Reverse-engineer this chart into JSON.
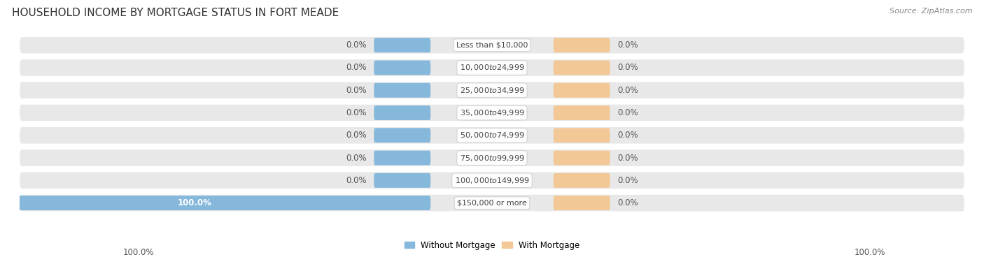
{
  "title": "HOUSEHOLD INCOME BY MORTGAGE STATUS IN FORT MEADE",
  "source": "Source: ZipAtlas.com",
  "categories": [
    "Less than $10,000",
    "$10,000 to $24,999",
    "$25,000 to $34,999",
    "$35,000 to $49,999",
    "$50,000 to $74,999",
    "$75,000 to $99,999",
    "$100,000 to $149,999",
    "$150,000 or more"
  ],
  "without_mortgage": [
    0.0,
    0.0,
    0.0,
    0.0,
    0.0,
    0.0,
    0.0,
    100.0
  ],
  "with_mortgage": [
    0.0,
    0.0,
    0.0,
    0.0,
    0.0,
    0.0,
    0.0,
    0.0
  ],
  "without_mortgage_color": "#85b8db",
  "with_mortgage_color": "#f2c897",
  "row_bg_color": "#e8e8e8",
  "label_color": "#444444",
  "value_color": "#555555",
  "x_min": -100,
  "x_max": 100,
  "stub_size": 12,
  "figsize": [
    14.06,
    3.78
  ],
  "dpi": 100
}
